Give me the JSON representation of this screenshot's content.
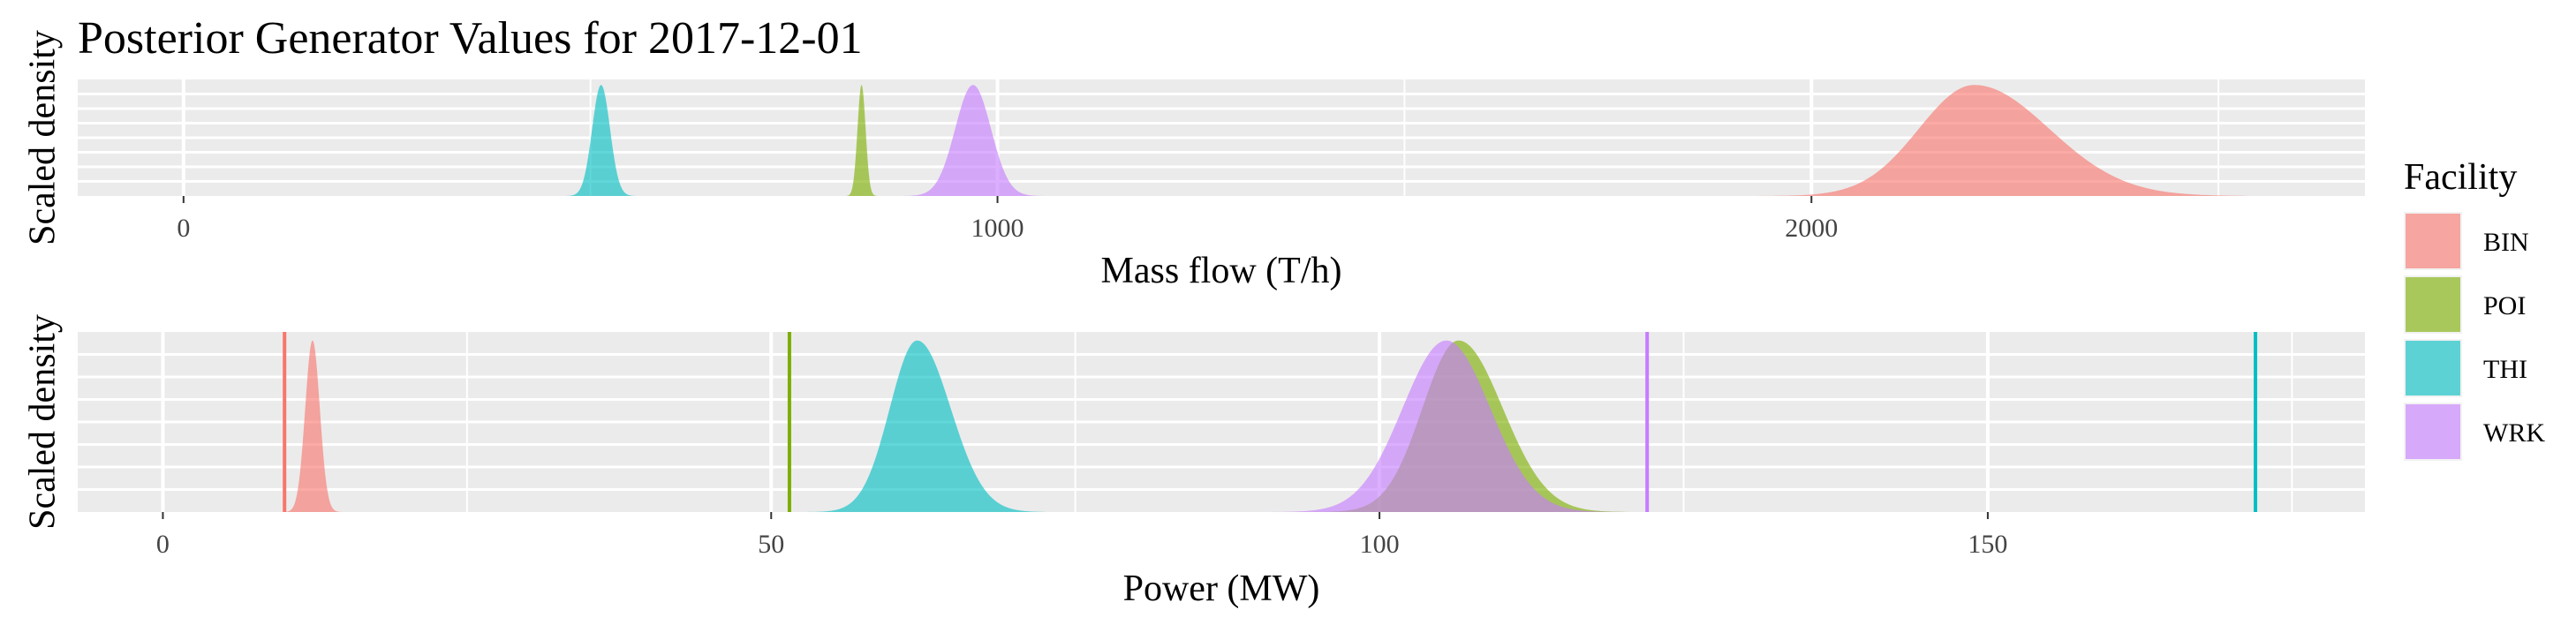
{
  "title": "Posterior Generator Values for 2017-12-01",
  "legend": {
    "title": "Facility",
    "entries": [
      {
        "label": "BIN",
        "color": "#F8766D"
      },
      {
        "label": "POI",
        "color": "#7CAE00"
      },
      {
        "label": "THI",
        "color": "#00BFC4"
      },
      {
        "label": "WRK",
        "color": "#C77CFF"
      }
    ]
  },
  "chart_data": [
    {
      "type": "area",
      "xlabel": "Mass flow (T/h)",
      "ylabel": "Scaled density",
      "xlim": [
        -130,
        2680
      ],
      "ylim": [
        0,
        1.05
      ],
      "ticks": [
        0,
        1000,
        2000
      ],
      "tick_labels": [
        "0",
        "1000",
        "2000"
      ],
      "grid": true,
      "densities": [
        {
          "name": "THI",
          "mean": 513,
          "sd": 11,
          "skew": 0
        },
        {
          "name": "POI",
          "mean": 833,
          "sd": 5,
          "skew": 0
        },
        {
          "name": "WRK",
          "mean": 970,
          "sd": 22,
          "skew": 0
        },
        {
          "name": "BIN",
          "mean": 2200,
          "sd": 80,
          "skew": 0.15
        }
      ]
    },
    {
      "type": "area",
      "xlabel": "Power (MW)",
      "ylabel": "Scaled density",
      "xlim": [
        -7,
        181
      ],
      "ylim": [
        0,
        1.05
      ],
      "ticks": [
        0,
        50,
        100,
        150
      ],
      "tick_labels": [
        "0",
        "50",
        "100",
        "150"
      ],
      "grid": true,
      "densities": [
        {
          "name": "BIN",
          "mean": 12.3,
          "sd": 0.6,
          "skew": 0
        },
        {
          "name": "THI",
          "mean": 62.0,
          "sd": 2.5,
          "skew": 0.1
        },
        {
          "name": "POI",
          "mean": 106.5,
          "sd": 3.3,
          "skew": 0.1
        },
        {
          "name": "WRK",
          "mean": 105.5,
          "sd": 3.6,
          "skew": 0
        }
      ],
      "reference_lines": [
        {
          "name": "BIN",
          "x": 10
        },
        {
          "name": "POI",
          "x": 51.5
        },
        {
          "name": "WRK",
          "x": 122
        },
        {
          "name": "THI",
          "x": 172
        }
      ]
    }
  ]
}
